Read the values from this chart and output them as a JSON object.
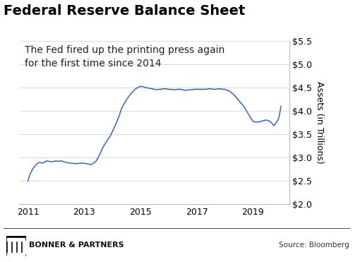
{
  "title": "Federal Reserve Balance Sheet",
  "annotation": "The Fed fired up the printing press again\nfor the first time since 2014",
  "ylabel": "Assets (in Trillions)",
  "source_text": "Source: Bloomberg",
  "footer_text": "BONNER & PARTNERS",
  "line_color": "#2255cc",
  "background_color": "#ffffff",
  "plot_bg_color": "#ffffff",
  "ylim": [
    2.0,
    5.5
  ],
  "yticks": [
    2.0,
    2.5,
    3.0,
    3.5,
    4.0,
    4.5,
    5.0,
    5.5
  ],
  "ytick_labels": [
    "$2.0",
    "$2.5",
    "$3.0",
    "$3.5",
    "$4.0",
    "$4.5",
    "$5.0",
    "$5.5"
  ],
  "xtick_labels": [
    "2011",
    "2013",
    "2015",
    "2017",
    "2019"
  ],
  "title_fontsize": 14,
  "annotation_fontsize": 10,
  "tick_fontsize": 9,
  "ylabel_fontsize": 9,
  "x_values": [
    2011.0,
    2011.08,
    2011.17,
    2011.25,
    2011.33,
    2011.42,
    2011.5,
    2011.58,
    2011.67,
    2011.75,
    2011.83,
    2011.92,
    2012.0,
    2012.08,
    2012.17,
    2012.25,
    2012.33,
    2012.42,
    2012.5,
    2012.58,
    2012.67,
    2012.75,
    2012.83,
    2012.92,
    2013.0,
    2013.08,
    2013.17,
    2013.25,
    2013.33,
    2013.42,
    2013.5,
    2013.58,
    2013.67,
    2013.75,
    2013.83,
    2013.92,
    2014.0,
    2014.08,
    2014.17,
    2014.25,
    2014.33,
    2014.42,
    2014.5,
    2014.58,
    2014.67,
    2014.75,
    2014.83,
    2014.92,
    2015.0,
    2015.08,
    2015.17,
    2015.25,
    2015.33,
    2015.42,
    2015.5,
    2015.58,
    2015.67,
    2015.75,
    2015.83,
    2015.92,
    2016.0,
    2016.08,
    2016.17,
    2016.25,
    2016.33,
    2016.42,
    2016.5,
    2016.58,
    2016.67,
    2016.75,
    2016.83,
    2016.92,
    2017.0,
    2017.08,
    2017.17,
    2017.25,
    2017.33,
    2017.42,
    2017.5,
    2017.58,
    2017.67,
    2017.75,
    2017.83,
    2017.92,
    2018.0,
    2018.08,
    2018.17,
    2018.25,
    2018.33,
    2018.42,
    2018.5,
    2018.58,
    2018.67,
    2018.75,
    2018.83,
    2018.92,
    2019.0,
    2019.08,
    2019.17,
    2019.25,
    2019.33,
    2019.42,
    2019.5,
    2019.58,
    2019.67,
    2019.75,
    2019.83,
    2019.92,
    2020.0
  ],
  "y_values": [
    2.5,
    2.65,
    2.75,
    2.82,
    2.87,
    2.9,
    2.88,
    2.9,
    2.93,
    2.92,
    2.91,
    2.92,
    2.93,
    2.92,
    2.93,
    2.92,
    2.9,
    2.89,
    2.88,
    2.88,
    2.87,
    2.87,
    2.88,
    2.88,
    2.88,
    2.87,
    2.86,
    2.85,
    2.88,
    2.92,
    3.0,
    3.1,
    3.22,
    3.3,
    3.38,
    3.45,
    3.55,
    3.65,
    3.78,
    3.9,
    4.05,
    4.15,
    4.23,
    4.3,
    4.37,
    4.42,
    4.47,
    4.5,
    4.52,
    4.52,
    4.5,
    4.49,
    4.48,
    4.47,
    4.46,
    4.45,
    4.46,
    4.46,
    4.47,
    4.47,
    4.46,
    4.46,
    4.45,
    4.45,
    4.46,
    4.46,
    4.45,
    4.44,
    4.44,
    4.45,
    4.45,
    4.46,
    4.46,
    4.46,
    4.46,
    4.46,
    4.46,
    4.47,
    4.47,
    4.46,
    4.46,
    4.47,
    4.47,
    4.46,
    4.46,
    4.44,
    4.42,
    4.38,
    4.34,
    4.28,
    4.22,
    4.16,
    4.1,
    4.02,
    3.94,
    3.85,
    3.78,
    3.76,
    3.76,
    3.77,
    3.78,
    3.8,
    3.8,
    3.78,
    3.74,
    3.68,
    3.75,
    3.84,
    4.1
  ]
}
